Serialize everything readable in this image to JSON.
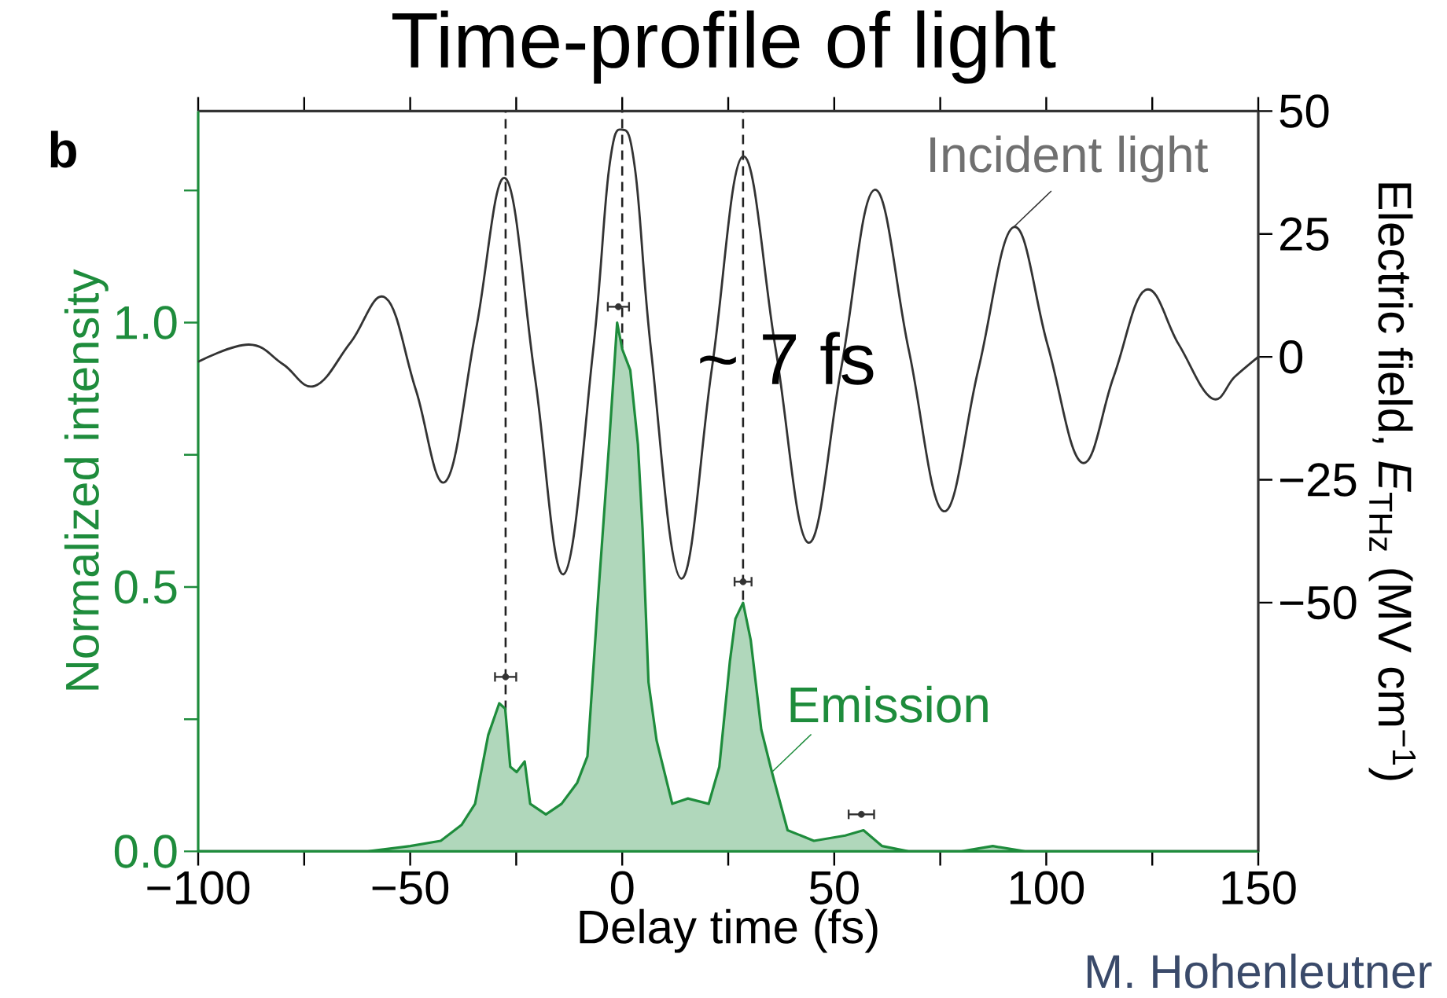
{
  "chart_data": {
    "type": "line",
    "title": "Time-profile of light",
    "xlabel": "Delay time (fs)",
    "ylabel": "Normalized intensity",
    "y2label": "Electric field, *E*$_{THz}$ (MV cm$^{−1}$)",
    "annotations": [
      "b",
      "~ 7 fs",
      "M. Hohenleutner"
    ],
    "xlim": [
      -100,
      150
    ],
    "xticks": [
      {
        "value": -100,
        "label": "−100"
      },
      {
        "value": -75,
        "label": null
      },
      {
        "value": -50,
        "label": "−50"
      },
      {
        "value": -25,
        "label": null
      },
      0,
      {
        "value": 25,
        "label": null
      },
      50,
      {
        "value": 75,
        "label": null
      },
      100,
      {
        "value": 125,
        "label": null
      },
      150
    ],
    "ylim": [
      0,
      1.4
    ],
    "yticks": [
      {
        "value": 0,
        "label": "0.0"
      },
      {
        "value": 0.25,
        "label": null
      },
      {
        "value": 0.5,
        "label": "0.5"
      },
      {
        "value": 0.75,
        "label": null
      },
      {
        "value": 1,
        "label": "1.0"
      },
      {
        "value": 1.25,
        "label": null
      }
    ],
    "y2lim": [
      -100.6,
      50
    ],
    "y2ticks": [
      50,
      25,
      0,
      {
        "value": -25,
        "label": "−25"
      },
      {
        "value": -50,
        "label": "−50"
      }
    ],
    "marker": "none",
    "ref_lines": [
      {
        "axis": "x",
        "value": -27.5,
        "color": "#222222",
        "line_style": "dashed"
      },
      {
        "axis": "x",
        "value": 0,
        "color": "#222222",
        "line_style": "dashed"
      },
      {
        "axis": "x",
        "value": 28.5,
        "color": "#222222",
        "line_style": "dashed"
      }
    ],
    "series": [
      {
        "name": "Emission",
        "type": "area",
        "color": "#1e8c3c",
        "x": [
          -100,
          -60,
          -50,
          -42.8,
          -37.9,
          -34.7,
          -31.6,
          -29,
          -27.6,
          -26.4,
          -24.9,
          -23,
          -21.7,
          -18,
          -14.3,
          -10.6,
          -8.2,
          -5.6,
          -3.1,
          -1.2,
          0,
          1.9,
          3.7,
          4.8,
          6.2,
          8.1,
          11.8,
          15.5,
          20.4,
          22.9,
          25.4,
          26.7,
          28.5,
          30.3,
          32.8,
          35.3,
          39,
          45.2,
          52.6,
          56.9,
          61.3,
          67.5,
          80,
          87.4,
          95,
          100,
          150
        ],
        "values": [
          0,
          0,
          0.01,
          0.02,
          0.05,
          0.09,
          0.22,
          0.28,
          0.27,
          0.16,
          0.15,
          0.17,
          0.09,
          0.07,
          0.09,
          0.13,
          0.18,
          0.49,
          0.77,
          1.0,
          0.95,
          0.91,
          0.77,
          0.61,
          0.32,
          0.21,
          0.09,
          0.1,
          0.09,
          0.16,
          0.36,
          0.44,
          0.47,
          0.4,
          0.23,
          0.15,
          0.04,
          0.02,
          0.03,
          0.04,
          0.01,
          0,
          0,
          0.01,
          0,
          0,
          0
        ]
      },
      {
        "name": "Incident light",
        "axis": "y2",
        "color": "#333333",
        "x": [
          -100,
          -88,
          -80,
          -72.5,
          -64,
          -55.8,
          -48.7,
          -41.6,
          -34.5,
          -27.5,
          -20.6,
          -13.8,
          -6.9,
          -3.1,
          0,
          3.1,
          6.9,
          13.9,
          21.2,
          28.5,
          36.2,
          43.9,
          51.7,
          59.5,
          67.6,
          75.8,
          84,
          92.3,
          100.3,
          108.4,
          115.9,
          123.4,
          131.2,
          139,
          144.5,
          150
        ],
        "values": [
          -1,
          2.5,
          -1.5,
          -5.9,
          3,
          12,
          -6.6,
          -25.3,
          5.5,
          36.3,
          -4,
          -44.2,
          1,
          38.3,
          46.2,
          37.7,
          0.5,
          -45.1,
          -2,
          40.8,
          1.5,
          -37.8,
          -2,
          34,
          1.3,
          -31.4,
          -2.5,
          26.4,
          2.5,
          -21.5,
          -4,
          13.6,
          2.6,
          -8.4,
          -4,
          0
        ]
      },
      {
        "type": "scatter",
        "marker": "circle",
        "color": "#333333",
        "x": [
          -27.5,
          -0.9,
          28.5,
          56.4
        ],
        "values": [
          0.33,
          1.03,
          0.51,
          0.07
        ],
        "xerrors": [
          2.5,
          2.5,
          2,
          3
        ]
      }
    ]
  }
}
